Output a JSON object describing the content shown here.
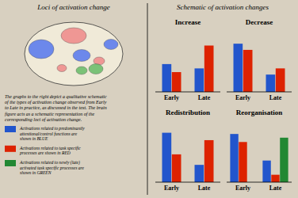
{
  "title": "Schematic of activation changes",
  "annotations": [
    {
      "text": "Loci of activation change"
    },
    {
      "text": "The graphs to the right depict a qualitative schematic\nof the types of activation change observed from Early\nto Late in practice, as discussed in the text. The brain\nfigure acts as a schematic representation of the\ncorresponding loci of activation change."
    }
  ],
  "chart_data": [
    {
      "type": "bar",
      "title": "Increase",
      "categories": [
        "Early",
        "Late"
      ],
      "series": [
        {
          "color": "#2255cc",
          "values": [
            0.45,
            0.38
          ]
        },
        {
          "color": "#dd2200",
          "values": [
            0.32,
            0.75
          ]
        }
      ],
      "ylim": [
        0,
        1.0
      ],
      "tick_labels": "x"
    },
    {
      "type": "bar",
      "title": "Decrease",
      "categories": [
        "Early",
        "Late"
      ],
      "series": [
        {
          "color": "#2255cc",
          "values": [
            0.78,
            0.28
          ]
        },
        {
          "color": "#dd2200",
          "values": [
            0.68,
            0.38
          ]
        }
      ],
      "ylim": [
        0,
        1.0
      ],
      "tick_labels": "x"
    },
    {
      "type": "bar",
      "title": "Redistribution",
      "categories": [
        "Early",
        "Late"
      ],
      "series": [
        {
          "color": "#2255cc",
          "values": [
            0.8,
            0.28
          ]
        },
        {
          "color": "#dd2200",
          "values": [
            0.45,
            0.68
          ]
        }
      ],
      "ylim": [
        0,
        1.0
      ],
      "tick_labels": "x"
    },
    {
      "type": "bar",
      "title": "Reorganisation",
      "categories": [
        "Early",
        "Late"
      ],
      "series": [
        {
          "name": "Activations related to predominantly\nattentional/control functions are\nshown in BLUE",
          "color": "#2255cc",
          "values": [
            0.78,
            0.35
          ]
        },
        {
          "name": "Activations related to task specific\nprocesses are shown in RED",
          "color": "#dd2200",
          "values": [
            0.65,
            0.12
          ]
        },
        {
          "name": "Activations related to newly (late)\nactivated task specific processes are\nshown in GREEN",
          "color": "#228833",
          "values": [
            0.0,
            0.72
          ]
        }
      ],
      "ylim": [
        0,
        1.0
      ],
      "tick_labels": "x"
    }
  ]
}
